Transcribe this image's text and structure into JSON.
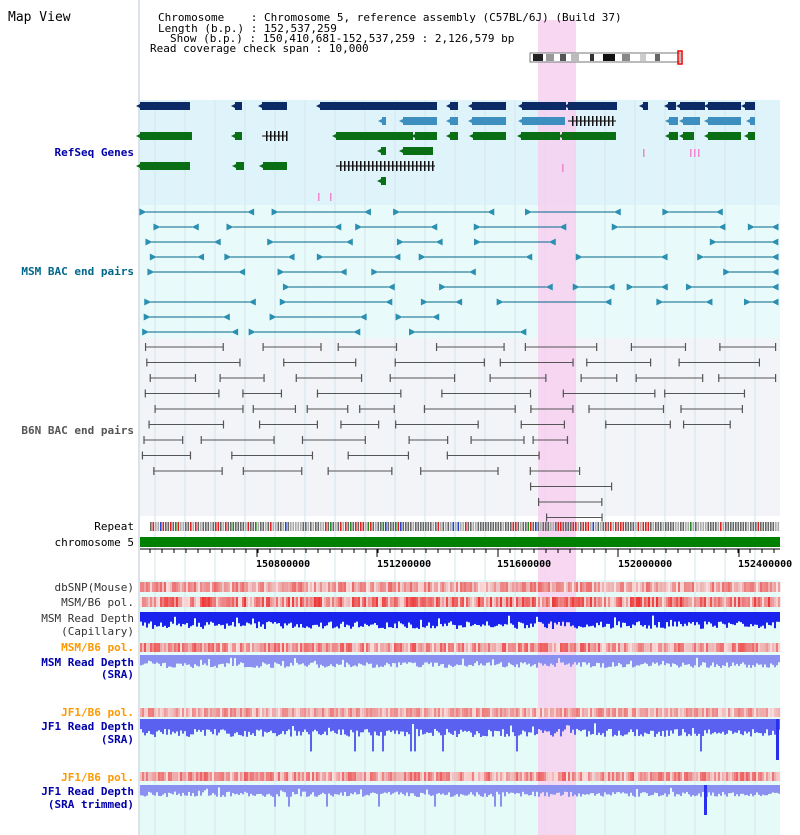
{
  "app": {
    "title": "Map View"
  },
  "header": {
    "chromosome_label": "Chromosome",
    "chromosome_value": "Chromosome 5, reference assembly (C57BL/6J) (Build 37)",
    "length_label": "Length (b.p.)",
    "length_value": "152,537,259",
    "show_label": "Show (b.p.)",
    "show_value": "150,410,681-152,537,259 : 2,126,579 bp",
    "coverage_label": "Read coverage check span",
    "coverage_value": "10,000"
  },
  "tracks": {
    "refseq": {
      "label": "RefSeq Genes",
      "color": "#0000aa"
    },
    "msm_bac": {
      "label": "MSM BAC end pairs",
      "color": "#006688"
    },
    "b6n_bac": {
      "label": "B6N BAC end pairs",
      "color": "#555555"
    },
    "repeat": {
      "label": "Repeat"
    },
    "chromosome": {
      "label": "chromosome 5"
    },
    "dbsnp": {
      "label": "dbSNP(Mouse)"
    },
    "msm_b6_pol_1": {
      "label": "MSM/B6 pol."
    },
    "msm_depth_cap": {
      "label1": "MSM Read Depth",
      "label2": "(Capillary)"
    },
    "msm_b6_pol_2": {
      "label": "MSM/B6 pol.",
      "color": "#ff9900"
    },
    "msm_depth_sra": {
      "label1": "MSM Read Depth",
      "label2": "(SRA)",
      "color": "#0000aa"
    },
    "jf1_b6_pol_1": {
      "label": "JF1/B6 pol.",
      "color": "#ff9900"
    },
    "jf1_depth_sra": {
      "label1": "JF1 Read Depth",
      "label2": "(SRA)",
      "color": "#0000aa"
    },
    "jf1_b6_pol_2": {
      "label": "JF1/B6 pol.",
      "color": "#ff9900"
    },
    "jf1_depth_trim": {
      "label1": "JF1 Read Depth",
      "label2": "(SRA trimmed)",
      "color": "#0000aa"
    }
  },
  "axis": {
    "ticks": [
      {
        "value": 150800000,
        "label": "150800000"
      },
      {
        "value": 151200000,
        "label": "151200000"
      },
      {
        "value": 151600000,
        "label": "151600000"
      },
      {
        "value": 152000000,
        "label": "152000000"
      },
      {
        "value": 152400000,
        "label": "152400000"
      }
    ]
  },
  "colors": {
    "highlight": "#f7d0f0",
    "refseq_bg": "#dff3fb",
    "msm_bg": "#e9fafb",
    "b6n_bg": "#f2f4f8",
    "depth_bg": "#e4fbf7",
    "chromosome_bar": "#008000",
    "gene_dark": "#0b2a66",
    "gene_mid": "#3d8fbf",
    "gene_green": "#0a6e14"
  }
}
